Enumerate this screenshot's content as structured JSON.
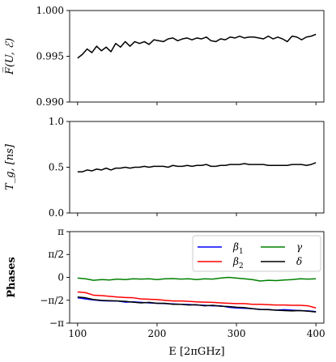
{
  "chart_data": [
    {
      "type": "line",
      "ylabel": "F̅(U, ℰ)",
      "ylim": [
        0.99,
        1.0
      ],
      "xlim": [
        90,
        410
      ],
      "yticks": [
        "1.000",
        "0.995",
        "0.990"
      ],
      "ytick_values": [
        1.0,
        0.995,
        0.99
      ],
      "xticks": [
        100,
        200,
        300,
        400
      ],
      "grid": false,
      "series": [
        {
          "color": "#000000",
          "x": [
            100,
            106,
            112,
            118,
            124,
            130,
            136,
            142,
            148,
            154,
            160,
            166,
            172,
            178,
            184,
            190,
            196,
            202,
            208,
            214,
            220,
            226,
            232,
            238,
            244,
            250,
            256,
            262,
            268,
            274,
            280,
            286,
            292,
            298,
            304,
            310,
            316,
            322,
            328,
            334,
            340,
            346,
            352,
            358,
            364,
            370,
            376,
            382,
            388,
            394,
            400
          ],
          "values": [
            0.9948,
            0.9952,
            0.9958,
            0.9954,
            0.9961,
            0.9956,
            0.996,
            0.9955,
            0.9964,
            0.996,
            0.9966,
            0.9961,
            0.9966,
            0.9964,
            0.9966,
            0.9963,
            0.9968,
            0.9967,
            0.9966,
            0.9969,
            0.997,
            0.9967,
            0.9969,
            0.997,
            0.9968,
            0.997,
            0.9969,
            0.9971,
            0.9967,
            0.9966,
            0.9969,
            0.9968,
            0.9971,
            0.997,
            0.9972,
            0.997,
            0.9971,
            0.9971,
            0.997,
            0.9969,
            0.9972,
            0.9969,
            0.9971,
            0.9969,
            0.9966,
            0.9972,
            0.9971,
            0.9968,
            0.9971,
            0.9972,
            0.9974
          ]
        }
      ]
    },
    {
      "type": "line",
      "ylabel": "T_g, [ns]",
      "ylim": [
        0.0,
        1.0
      ],
      "xlim": [
        90,
        410
      ],
      "yticks": [
        "1.0",
        "0.5",
        "0.0"
      ],
      "ytick_values": [
        1.0,
        0.5,
        0.0
      ],
      "xticks": [
        100,
        200,
        300,
        400
      ],
      "grid": false,
      "series": [
        {
          "color": "#000000",
          "x": [
            100,
            106,
            112,
            118,
            124,
            130,
            136,
            142,
            148,
            154,
            160,
            166,
            172,
            178,
            184,
            190,
            196,
            202,
            208,
            214,
            220,
            226,
            232,
            238,
            244,
            250,
            256,
            262,
            268,
            274,
            280,
            286,
            292,
            298,
            304,
            310,
            316,
            322,
            328,
            334,
            340,
            346,
            352,
            358,
            364,
            370,
            376,
            382,
            388,
            394,
            400
          ],
          "values": [
            0.45,
            0.45,
            0.47,
            0.46,
            0.48,
            0.47,
            0.49,
            0.47,
            0.49,
            0.49,
            0.5,
            0.49,
            0.5,
            0.5,
            0.51,
            0.5,
            0.51,
            0.51,
            0.51,
            0.5,
            0.52,
            0.51,
            0.51,
            0.52,
            0.51,
            0.52,
            0.52,
            0.53,
            0.51,
            0.51,
            0.52,
            0.52,
            0.53,
            0.53,
            0.53,
            0.54,
            0.53,
            0.53,
            0.53,
            0.53,
            0.52,
            0.52,
            0.52,
            0.52,
            0.52,
            0.53,
            0.53,
            0.53,
            0.52,
            0.53,
            0.55
          ]
        }
      ]
    },
    {
      "type": "line",
      "ylabel": "Phases",
      "xlabel": "E [2πGHz]",
      "ylim": [
        -3.14159,
        3.14159
      ],
      "xlim": [
        90,
        410
      ],
      "yticks": [
        "π",
        "π/2",
        "0",
        "−π/2",
        "−π"
      ],
      "ytick_values": [
        3.14159,
        1.5708,
        0,
        -1.5708,
        -3.14159
      ],
      "xticks": [
        100,
        200,
        300,
        400
      ],
      "xtick_labels": [
        "100",
        "200",
        "300",
        "400"
      ],
      "grid": false,
      "legend": "top-right",
      "series": [
        {
          "name": "β1",
          "legend_text": "β",
          "legend_sub": "1",
          "color": "#0000ff",
          "x": [
            100,
            110,
            120,
            130,
            140,
            150,
            160,
            170,
            180,
            190,
            200,
            210,
            220,
            230,
            240,
            250,
            260,
            270,
            280,
            290,
            300,
            310,
            320,
            330,
            340,
            350,
            360,
            370,
            380,
            390,
            400
          ],
          "values": [
            -1.4,
            -1.48,
            -1.55,
            -1.6,
            -1.62,
            -1.62,
            -1.7,
            -1.68,
            -1.72,
            -1.75,
            -1.78,
            -1.8,
            -1.82,
            -1.85,
            -1.86,
            -1.9,
            -1.92,
            -1.95,
            -1.95,
            -2.05,
            -2.1,
            -2.12,
            -2.15,
            -2.2,
            -2.2,
            -2.25,
            -2.22,
            -2.25,
            -2.28,
            -2.3,
            -2.35
          ]
        },
        {
          "name": "β2",
          "legend_text": "β",
          "legend_sub": "2",
          "color": "#ff0000",
          "x": [
            100,
            110,
            120,
            130,
            140,
            150,
            160,
            170,
            180,
            190,
            200,
            210,
            220,
            230,
            240,
            250,
            260,
            270,
            280,
            290,
            300,
            310,
            320,
            330,
            340,
            350,
            360,
            370,
            380,
            390,
            400
          ],
          "values": [
            -1.0,
            -1.05,
            -1.22,
            -1.25,
            -1.3,
            -1.35,
            -1.38,
            -1.4,
            -1.48,
            -1.5,
            -1.52,
            -1.58,
            -1.62,
            -1.62,
            -1.65,
            -1.68,
            -1.7,
            -1.72,
            -1.75,
            -1.78,
            -1.8,
            -1.8,
            -1.85,
            -1.85,
            -1.88,
            -1.9,
            -1.9,
            -1.92,
            -1.92,
            -1.95,
            -2.1
          ]
        },
        {
          "name": "γ",
          "legend_text": "γ",
          "color": "#008000",
          "x": [
            100,
            110,
            120,
            130,
            140,
            150,
            160,
            170,
            180,
            190,
            200,
            210,
            220,
            230,
            240,
            250,
            260,
            270,
            280,
            290,
            300,
            310,
            320,
            330,
            340,
            350,
            360,
            370,
            380,
            390,
            400
          ],
          "values": [
            -0.05,
            -0.1,
            -0.2,
            -0.15,
            -0.18,
            -0.12,
            -0.15,
            -0.1,
            -0.12,
            -0.1,
            -0.15,
            -0.1,
            -0.08,
            -0.12,
            -0.1,
            -0.15,
            -0.1,
            -0.12,
            -0.05,
            0.0,
            -0.05,
            -0.1,
            -0.15,
            -0.25,
            -0.2,
            -0.22,
            -0.18,
            -0.15,
            -0.1,
            -0.12,
            -0.1
          ]
        },
        {
          "name": "δ",
          "legend_text": "δ",
          "color": "#000000",
          "x": [
            100,
            110,
            120,
            130,
            140,
            150,
            160,
            170,
            180,
            190,
            200,
            210,
            220,
            230,
            240,
            250,
            260,
            270,
            280,
            290,
            300,
            310,
            320,
            330,
            340,
            350,
            360,
            370,
            380,
            390,
            400
          ],
          "values": [
            -1.35,
            -1.4,
            -1.52,
            -1.58,
            -1.6,
            -1.62,
            -1.65,
            -1.7,
            -1.75,
            -1.72,
            -1.78,
            -1.78,
            -1.85,
            -1.85,
            -1.9,
            -1.88,
            -1.95,
            -1.92,
            -1.98,
            -2.0,
            -2.05,
            -2.08,
            -2.15,
            -2.2,
            -2.22,
            -2.25,
            -2.28,
            -2.3,
            -2.28,
            -2.32,
            -2.38
          ]
        }
      ]
    }
  ]
}
